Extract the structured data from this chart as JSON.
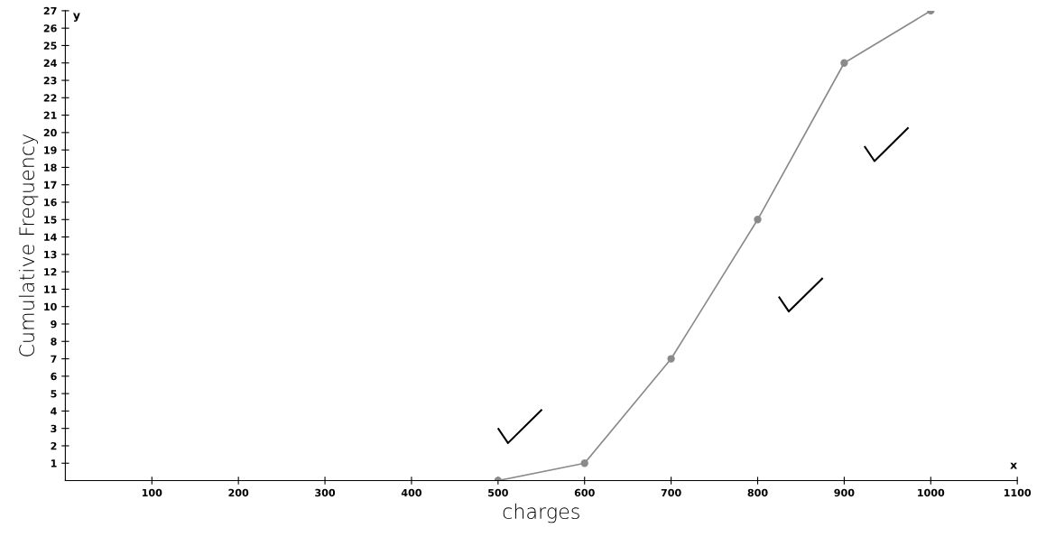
{
  "chart_data": {
    "type": "line",
    "xlabel": "charges",
    "ylabel": "Cumulative Frequency",
    "annotations": [
      "x",
      "y"
    ],
    "x": [
      500,
      600,
      700,
      800,
      900,
      1000
    ],
    "series": [
      {
        "color": "#8a8a8a",
        "values": [
          0,
          1,
          7,
          15,
          24,
          27
        ]
      }
    ],
    "xlim": [
      0,
      1100
    ],
    "ylim": [
      0,
      27
    ],
    "xticks": [
      100,
      200,
      300,
      400,
      500,
      600,
      700,
      800,
      900,
      1000,
      1100
    ],
    "yticks": [
      1,
      2,
      3,
      4,
      5,
      6,
      7,
      8,
      9,
      10,
      11,
      12,
      13,
      14,
      15,
      16,
      17,
      18,
      19,
      20,
      21,
      22,
      23,
      24,
      25,
      26,
      27
    ],
    "marker": "circle",
    "line_style": "solid",
    "grid": false,
    "legend": false
  }
}
